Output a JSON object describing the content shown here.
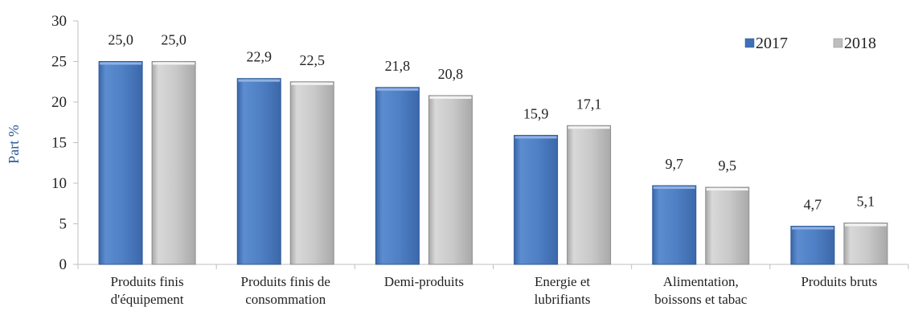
{
  "chart_data": {
    "type": "bar",
    "title": "",
    "xlabel": "",
    "ylabel": "Part %",
    "ylim": [
      0,
      30
    ],
    "yticks": [
      0,
      5,
      10,
      15,
      20,
      25,
      30
    ],
    "grid": false,
    "legend_position": "top-right",
    "categories": [
      [
        "Produits finis",
        "d'équipement"
      ],
      [
        "Produits finis de",
        "consommation"
      ],
      [
        "Demi-produits"
      ],
      [
        "Energie et",
        "lubrifiants"
      ],
      [
        "Alimentation,",
        "boissons et tabac"
      ],
      [
        "Produits bruts"
      ]
    ],
    "series": [
      {
        "name": "2017",
        "color": "#4F7FC4",
        "values": [
          25.0,
          22.9,
          21.8,
          15.9,
          9.7,
          4.7
        ],
        "labels": [
          "25,0",
          "22,9",
          "21,8",
          "15,9",
          "9,7",
          "4,7"
        ]
      },
      {
        "name": "2018",
        "color": "#C9C9C9",
        "values": [
          25.0,
          22.5,
          20.8,
          17.1,
          9.5,
          5.1
        ],
        "labels": [
          "25,0",
          "22,5",
          "20,8",
          "17,1",
          "9,5",
          "5,1"
        ]
      }
    ]
  }
}
